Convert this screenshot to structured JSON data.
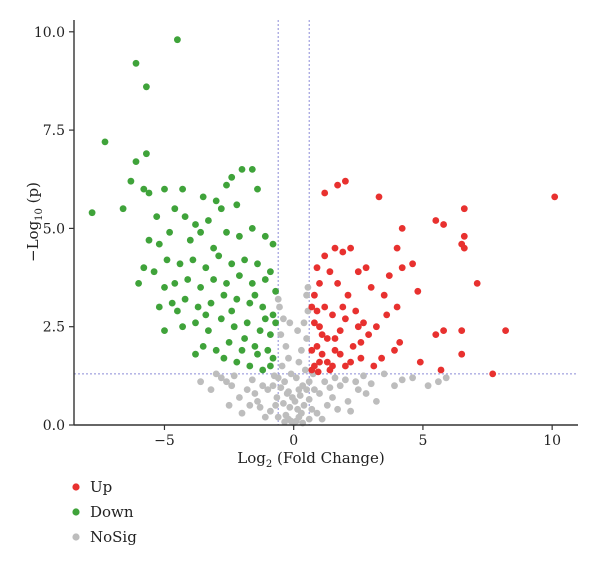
{
  "chart_data": {
    "type": "scatter",
    "title": "",
    "xlabel_prefix": "Log",
    "xlabel_sub": "2",
    "xlabel_suffix": " (Fold Change)",
    "ylabel_prefix": "−Log",
    "ylabel_sub": "10",
    "ylabel_suffix": " (p)",
    "xlim": [
      -8.5,
      11
    ],
    "ylim": [
      0,
      10.3
    ],
    "x_ticks": [
      -5,
      0,
      5,
      10
    ],
    "x_tick_labels": [
      "−5",
      "0",
      "5",
      "10"
    ],
    "y_ticks": [
      0,
      2.5,
      5,
      7.5,
      10
    ],
    "y_tick_labels": [
      "0.0",
      "2.5",
      "5.0",
      "7.5",
      "10.0"
    ],
    "thresholds": {
      "x": [
        -0.6,
        0.6
      ],
      "y": 1.3
    },
    "legend_position": "bottom-left",
    "series": [
      {
        "name": "Up",
        "color": "#e8312f",
        "points": [
          [
            10.1,
            5.8
          ],
          [
            7.7,
            1.3
          ],
          [
            8.2,
            2.4
          ],
          [
            7.1,
            3.6
          ],
          [
            6.6,
            5.5
          ],
          [
            6.6,
            4.8
          ],
          [
            6.5,
            4.6
          ],
          [
            6.6,
            4.5
          ],
          [
            6.5,
            2.4
          ],
          [
            6.5,
            1.8
          ],
          [
            5.8,
            5.1
          ],
          [
            5.5,
            5.2
          ],
          [
            5.8,
            2.4
          ],
          [
            5.5,
            2.3
          ],
          [
            5.7,
            1.4
          ],
          [
            4.9,
            1.6
          ],
          [
            4.8,
            3.4
          ],
          [
            4.6,
            4.1
          ],
          [
            4.2,
            5.0
          ],
          [
            4.2,
            4.0
          ],
          [
            4.0,
            4.5
          ],
          [
            4.0,
            3.0
          ],
          [
            4.1,
            2.1
          ],
          [
            3.9,
            1.9
          ],
          [
            3.7,
            3.8
          ],
          [
            3.6,
            2.8
          ],
          [
            3.5,
            3.3
          ],
          [
            3.3,
            5.8
          ],
          [
            3.2,
            2.5
          ],
          [
            3.1,
            1.5
          ],
          [
            3.0,
            3.5
          ],
          [
            2.9,
            2.3
          ],
          [
            2.8,
            4.0
          ],
          [
            2.7,
            2.6
          ],
          [
            2.6,
            1.7
          ],
          [
            2.5,
            3.9
          ],
          [
            2.4,
            2.9
          ],
          [
            2.3,
            2.0
          ],
          [
            2.2,
            4.5
          ],
          [
            2.1,
            3.3
          ],
          [
            2.0,
            6.2
          ],
          [
            2.0,
            1.5
          ],
          [
            1.9,
            4.4
          ],
          [
            1.8,
            2.4
          ],
          [
            1.7,
            6.1
          ],
          [
            1.7,
            3.6
          ],
          [
            1.6,
            4.5
          ],
          [
            1.6,
            1.9
          ],
          [
            1.5,
            2.8
          ],
          [
            1.4,
            3.9
          ],
          [
            1.4,
            1.4
          ],
          [
            1.3,
            2.2
          ],
          [
            1.2,
            5.9
          ],
          [
            1.2,
            4.3
          ],
          [
            1.2,
            3.0
          ],
          [
            1.1,
            1.8
          ],
          [
            1.0,
            3.6
          ],
          [
            1.0,
            2.5
          ],
          [
            1.0,
            1.6
          ],
          [
            0.9,
            4.0
          ],
          [
            0.9,
            2.9
          ],
          [
            0.9,
            2.0
          ],
          [
            0.8,
            1.5
          ],
          [
            0.8,
            3.3
          ],
          [
            0.8,
            2.6
          ],
          [
            0.7,
            1.9
          ],
          [
            0.7,
            3.0
          ],
          [
            0.7,
            1.4
          ],
          [
            1.5,
            1.5
          ],
          [
            1.8,
            1.8
          ],
          [
            2.2,
            1.6
          ],
          [
            2.6,
            2.1
          ],
          [
            3.4,
            1.7
          ],
          [
            1.3,
            1.6
          ],
          [
            1.1,
            2.3
          ],
          [
            0.95,
            1.35
          ],
          [
            1.6,
            2.2
          ],
          [
            2.0,
            2.7
          ],
          [
            2.5,
            2.5
          ],
          [
            1.9,
            3.0
          ]
        ]
      },
      {
        "name": "Down",
        "color": "#3fa33a",
        "points": [
          [
            -4.5,
            9.8
          ],
          [
            -6.1,
            9.2
          ],
          [
            -5.7,
            8.6
          ],
          [
            -7.3,
            7.2
          ],
          [
            -5.7,
            6.9
          ],
          [
            -6.1,
            6.7
          ],
          [
            -6.3,
            6.2
          ],
          [
            -7.8,
            5.4
          ],
          [
            -6.6,
            5.5
          ],
          [
            -5.8,
            6.0
          ],
          [
            -5.6,
            5.9
          ],
          [
            -5.0,
            6.0
          ],
          [
            -4.3,
            6.0
          ],
          [
            -3.5,
            5.8
          ],
          [
            -3.0,
            5.7
          ],
          [
            -2.0,
            6.5
          ],
          [
            -2.4,
            6.3
          ],
          [
            -2.6,
            6.1
          ],
          [
            -1.6,
            6.5
          ],
          [
            -5.3,
            5.3
          ],
          [
            -4.6,
            5.5
          ],
          [
            -4.2,
            5.3
          ],
          [
            -3.8,
            5.1
          ],
          [
            -3.3,
            5.2
          ],
          [
            -2.8,
            5.5
          ],
          [
            -2.2,
            5.6
          ],
          [
            -1.4,
            6.0
          ],
          [
            -5.6,
            4.7
          ],
          [
            -5.2,
            4.6
          ],
          [
            -4.8,
            4.9
          ],
          [
            -4.0,
            4.7
          ],
          [
            -3.6,
            4.9
          ],
          [
            -3.1,
            4.5
          ],
          [
            -2.6,
            4.9
          ],
          [
            -2.1,
            4.8
          ],
          [
            -1.6,
            5.0
          ],
          [
            -1.1,
            4.8
          ],
          [
            -0.8,
            4.6
          ],
          [
            -5.8,
            4.0
          ],
          [
            -5.4,
            3.9
          ],
          [
            -4.9,
            4.2
          ],
          [
            -4.4,
            4.1
          ],
          [
            -3.9,
            4.2
          ],
          [
            -3.4,
            4.0
          ],
          [
            -2.9,
            4.3
          ],
          [
            -2.4,
            4.1
          ],
          [
            -1.9,
            4.2
          ],
          [
            -1.4,
            4.1
          ],
          [
            -0.9,
            3.9
          ],
          [
            -6.0,
            3.6
          ],
          [
            -5.0,
            3.5
          ],
          [
            -4.6,
            3.6
          ],
          [
            -4.1,
            3.7
          ],
          [
            -3.6,
            3.5
          ],
          [
            -3.1,
            3.7
          ],
          [
            -2.6,
            3.6
          ],
          [
            -2.1,
            3.8
          ],
          [
            -1.6,
            3.6
          ],
          [
            -1.1,
            3.7
          ],
          [
            -0.7,
            3.4
          ],
          [
            -5.2,
            3.0
          ],
          [
            -4.7,
            3.1
          ],
          [
            -4.2,
            3.2
          ],
          [
            -3.7,
            3.0
          ],
          [
            -3.2,
            3.1
          ],
          [
            -2.7,
            3.3
          ],
          [
            -2.2,
            3.2
          ],
          [
            -1.7,
            3.1
          ],
          [
            -1.2,
            3.0
          ],
          [
            -0.8,
            2.8
          ],
          [
            -5.0,
            2.4
          ],
          [
            -4.3,
            2.5
          ],
          [
            -3.8,
            2.6
          ],
          [
            -3.3,
            2.4
          ],
          [
            -2.8,
            2.7
          ],
          [
            -2.3,
            2.5
          ],
          [
            -1.8,
            2.6
          ],
          [
            -1.3,
            2.4
          ],
          [
            -0.9,
            2.3
          ],
          [
            -0.7,
            2.6
          ],
          [
            -3.5,
            2.0
          ],
          [
            -3.0,
            1.9
          ],
          [
            -2.5,
            2.1
          ],
          [
            -2.0,
            1.9
          ],
          [
            -1.5,
            2.0
          ],
          [
            -1.0,
            1.9
          ],
          [
            -0.8,
            1.7
          ],
          [
            -3.8,
            1.8
          ],
          [
            -2.2,
            1.6
          ],
          [
            -1.7,
            1.5
          ],
          [
            -1.2,
            1.4
          ],
          [
            -0.9,
            1.5
          ],
          [
            -2.7,
            1.7
          ],
          [
            -1.9,
            2.2
          ],
          [
            -1.4,
            1.8
          ],
          [
            -2.4,
            2.9
          ],
          [
            -1.1,
            2.7
          ],
          [
            -3.4,
            2.8
          ],
          [
            -4.5,
            2.9
          ],
          [
            -1.5,
            3.3
          ]
        ]
      },
      {
        "name": "NoSig",
        "color": "#bdbdbd",
        "points": [
          [
            0.0,
            0.05
          ],
          [
            0.1,
            0.1
          ],
          [
            -0.1,
            0.1
          ],
          [
            0.2,
            0.2
          ],
          [
            -0.2,
            0.15
          ],
          [
            0.3,
            0.3
          ],
          [
            -0.3,
            0.25
          ],
          [
            0.15,
            0.4
          ],
          [
            -0.15,
            0.45
          ],
          [
            0.4,
            0.5
          ],
          [
            -0.4,
            0.55
          ],
          [
            0.05,
            0.6
          ],
          [
            -0.05,
            0.7
          ],
          [
            0.25,
            0.75
          ],
          [
            -0.25,
            0.8
          ],
          [
            0.5,
            0.9
          ],
          [
            -0.5,
            0.95
          ],
          [
            0.35,
            1.0
          ],
          [
            -0.35,
            1.1
          ],
          [
            0.1,
            1.2
          ],
          [
            -0.1,
            1.3
          ],
          [
            0.45,
            1.4
          ],
          [
            -0.45,
            1.5
          ],
          [
            0.2,
            1.6
          ],
          [
            -0.2,
            1.7
          ],
          [
            0.3,
            1.9
          ],
          [
            -0.3,
            2.0
          ],
          [
            0.5,
            2.2
          ],
          [
            -0.5,
            2.3
          ],
          [
            0.4,
            2.6
          ],
          [
            -0.4,
            2.7
          ],
          [
            0.55,
            2.9
          ],
          [
            -0.55,
            3.0
          ],
          [
            0.5,
            3.3
          ],
          [
            0.55,
            3.5
          ],
          [
            -0.6,
            3.2
          ],
          [
            0.6,
            1.1
          ],
          [
            -0.6,
            1.2
          ],
          [
            0.8,
            0.9
          ],
          [
            -0.8,
            1.0
          ],
          [
            1.0,
            0.8
          ],
          [
            -1.0,
            0.9
          ],
          [
            1.2,
            1.1
          ],
          [
            -1.2,
            1.0
          ],
          [
            1.5,
            0.7
          ],
          [
            -1.5,
            0.8
          ],
          [
            1.8,
            1.0
          ],
          [
            -1.8,
            0.9
          ],
          [
            2.1,
            0.6
          ],
          [
            -2.1,
            0.7
          ],
          [
            2.4,
            1.1
          ],
          [
            -2.4,
            1.0
          ],
          [
            2.8,
            0.8
          ],
          [
            -2.8,
            1.2
          ],
          [
            3.2,
            0.6
          ],
          [
            -3.2,
            0.9
          ],
          [
            3.9,
            1.0
          ],
          [
            -3.6,
            1.1
          ],
          [
            4.6,
            1.2
          ],
          [
            5.2,
            1.0
          ],
          [
            5.6,
            1.1
          ],
          [
            2.7,
            1.25
          ],
          [
            -2.3,
            1.25
          ],
          [
            0.7,
            0.4
          ],
          [
            -0.7,
            0.5
          ],
          [
            0.9,
            0.3
          ],
          [
            -0.9,
            0.35
          ],
          [
            1.3,
            0.5
          ],
          [
            -1.3,
            0.45
          ],
          [
            1.7,
            0.4
          ],
          [
            -1.7,
            0.5
          ],
          [
            2.2,
            0.35
          ],
          [
            -2.0,
            0.3
          ],
          [
            0.6,
            0.15
          ],
          [
            -0.6,
            0.2
          ],
          [
            0.35,
            0.05
          ],
          [
            -0.35,
            0.08
          ],
          [
            1.1,
            0.15
          ],
          [
            -1.1,
            0.2
          ],
          [
            1.6,
            1.2
          ],
          [
            -1.6,
            1.15
          ],
          [
            0.75,
            1.3
          ],
          [
            -0.75,
            1.25
          ],
          [
            2.0,
            1.15
          ],
          [
            -2.6,
            1.1
          ],
          [
            3.5,
            1.3
          ],
          [
            -3.0,
            1.3
          ],
          [
            0.2,
            0.9
          ],
          [
            -0.2,
            0.85
          ],
          [
            0.6,
            0.65
          ],
          [
            -0.65,
            0.7
          ],
          [
            1.4,
            0.95
          ],
          [
            -1.4,
            0.6
          ],
          [
            2.5,
            0.9
          ],
          [
            -2.5,
            0.5
          ],
          [
            3.0,
            1.05
          ],
          [
            4.2,
            1.15
          ],
          [
            5.9,
            1.2
          ],
          [
            0.15,
            2.4
          ],
          [
            -0.15,
            2.6
          ]
        ]
      }
    ]
  }
}
